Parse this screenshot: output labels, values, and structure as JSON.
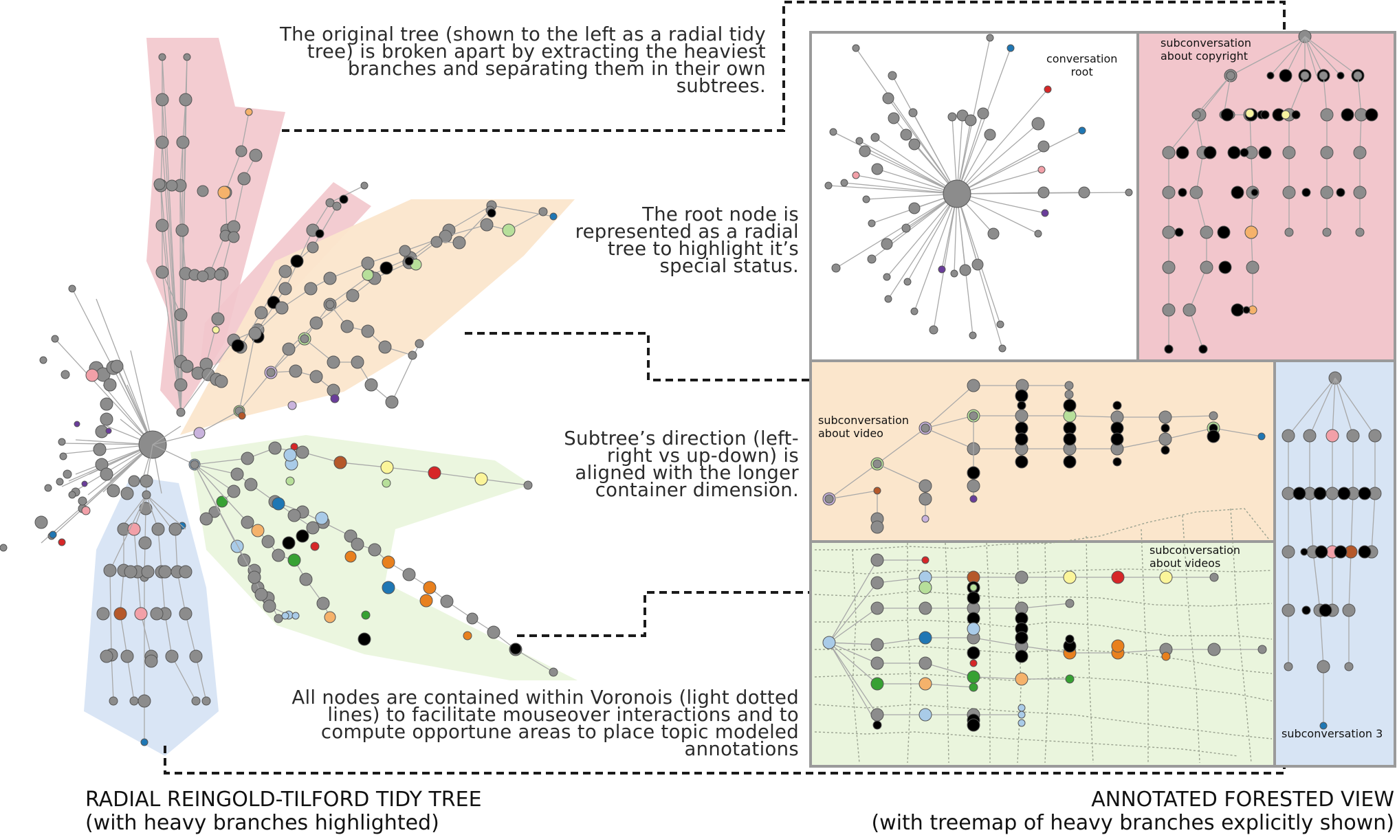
{
  "annotations": {
    "original_tree": [
      "The original tree (shown to the left as a radial tidy",
      "tree) is broken apart by extracting the heaviest",
      "branches and separating them in their own",
      "subtrees."
    ],
    "root_node": [
      "The root node is",
      "represented as a radial",
      "tree to highlight it’s",
      "special status."
    ],
    "direction": [
      "Subtree’s direction (left-",
      "right vs up-down) is",
      "aligned with the longer",
      "container dimension."
    ],
    "voronoi": [
      "All nodes are contained within Voronois (light dotted",
      "lines) to facilitate mouseover interactions and to",
      "compute opportune areas to place topic modeled",
      "annotations"
    ]
  },
  "headings": {
    "left": [
      "RADIAL REINGOLD-TILFORD TIDY TREE",
      "(with heavy branches highlighted)"
    ],
    "right": [
      "ANNOTATED FORESTED VIEW",
      "(with treemap of heavy branches explicitly shown)"
    ]
  },
  "treemap_labels": {
    "root": [
      "conversation",
      "root"
    ],
    "copyright": [
      "subconversation",
      "about copyright"
    ],
    "video": [
      "subconversation",
      "about video"
    ],
    "videos": [
      "subconversation",
      "about videos"
    ],
    "sub3": [
      "subconversation 3"
    ]
  },
  "colors": {
    "node_gray": "#8c8c8c",
    "edge_gray": "#a8a8a8",
    "panel_border": "#9a9a9a",
    "pink_region": "#f2c6cc",
    "orange_region": "#fbe6cc",
    "green_region": "#eaf5dd",
    "blue_region": "#d7e4f4",
    "leader_line": "#1a1a1a"
  }
}
